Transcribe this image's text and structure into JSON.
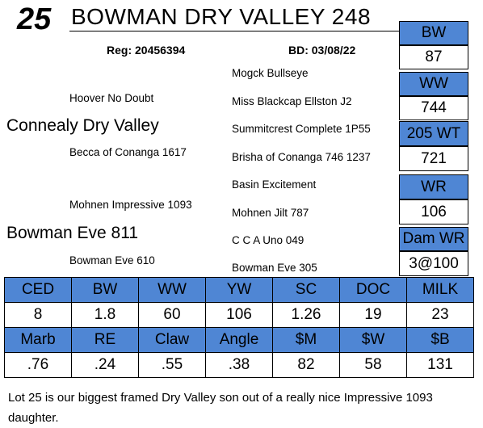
{
  "header": {
    "lot_number": "25",
    "title": "BOWMAN DRY VALLEY 248",
    "reg": "Reg: 20456394",
    "bd": "BD: 03/08/22"
  },
  "pedigree": {
    "sire": "Connealy Dry Valley",
    "sire_sire": "Hoover No Doubt",
    "sire_dam": "Becca of Conanga 1617",
    "sire_sire_sire": "Mogck Bullseye",
    "sire_sire_dam": "Miss Blackcap Ellston J2",
    "sire_dam_sire": "Summitcrest Complete 1P55",
    "sire_dam_dam": "Brisha of Conanga 746 1237",
    "dam": "Bowman Eve 811",
    "dam_sire": "Mohnen Impressive 1093",
    "dam_dam": "Bowman Eve 610",
    "dam_sire_sire": "Basin Excitement",
    "dam_sire_dam": "Mohnen Jilt 787",
    "dam_dam_sire": "C C A Uno 049",
    "dam_dam_dam": "Bowman Eve 305"
  },
  "side": [
    {
      "label": "BW",
      "value": "87"
    },
    {
      "label": "WW",
      "value": "744"
    },
    {
      "label": "205 WT",
      "value": "721"
    },
    {
      "label": "WR",
      "value": "106"
    },
    {
      "label": "Dam WR",
      "value": "3@100"
    }
  ],
  "epd_row1": {
    "headers": [
      "CED",
      "BW",
      "WW",
      "YW",
      "SC",
      "DOC",
      "MILK"
    ],
    "values": [
      "8",
      "1.8",
      "60",
      "106",
      "1.26",
      "19",
      "23"
    ]
  },
  "epd_row2": {
    "headers": [
      "Marb",
      "RE",
      "Claw",
      "Angle",
      "$M",
      "$W",
      "$B"
    ],
    "values": [
      ".76",
      ".24",
      ".55",
      ".38",
      "82",
      "58",
      "131"
    ]
  },
  "colors": {
    "header_fill": "#4f86d4"
  },
  "note": "Lot 25 is our biggest framed Dry Valley son out of a really nice Impressive 1093 daughter."
}
